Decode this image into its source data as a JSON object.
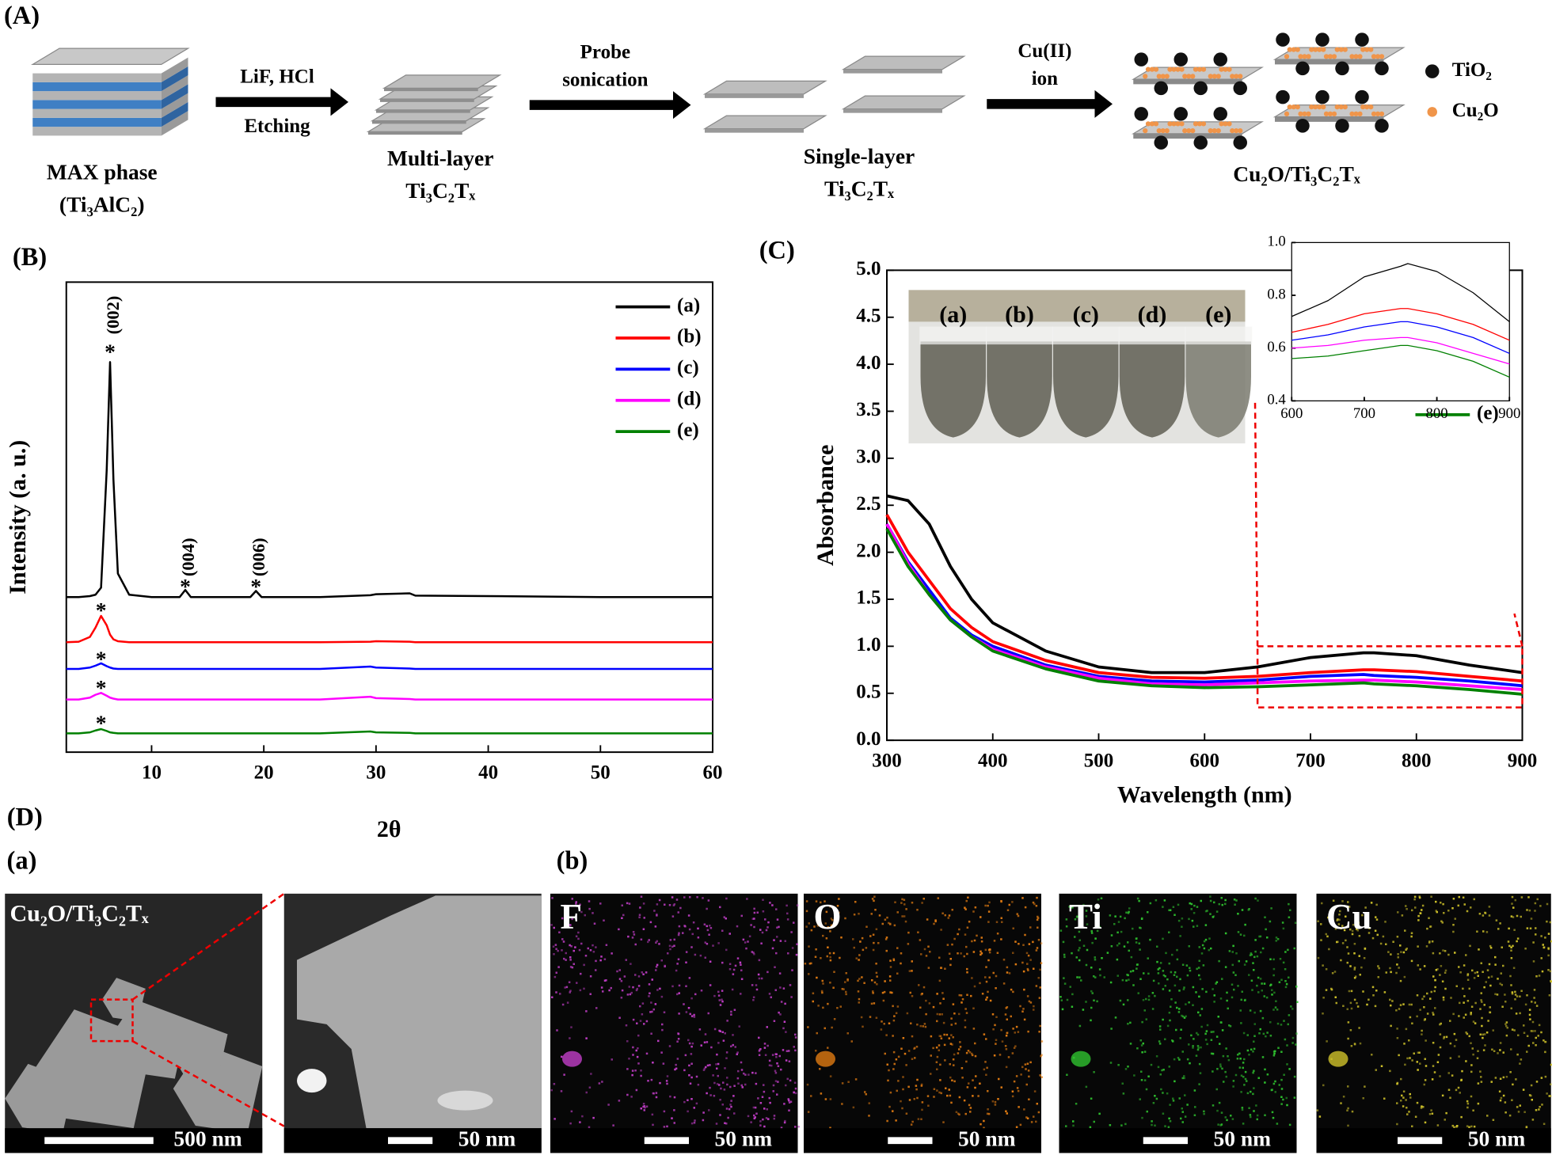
{
  "panel_labels": {
    "A": "(A)",
    "B": "(B)",
    "C": "(C)",
    "D": "(D)",
    "Da": "(a)",
    "Db": "(b)"
  },
  "schematic": {
    "stages": [
      {
        "lines": [
          "MAX phase",
          "(Ti₃AlC₂)"
        ]
      },
      {
        "lines": [
          "Multi-layer",
          "Ti₃C₂Tₓ"
        ]
      },
      {
        "lines": [
          "Single-layer",
          "Ti₃C₂Tₓ"
        ]
      },
      {
        "lines": [
          "Cu₂O/Ti₃C₂Tₓ"
        ]
      }
    ],
    "arrows": [
      {
        "above": [
          "LiF, HCl"
        ],
        "below": [
          "Etching"
        ]
      },
      {
        "above": [
          "Probe",
          "sonication"
        ],
        "below": []
      },
      {
        "above": [
          "Cu(II)",
          "ion"
        ],
        "below": []
      }
    ],
    "legend": [
      {
        "label": "TiO₂",
        "color": "#111111"
      },
      {
        "label": "Cu₂O",
        "color": "#f0954a"
      }
    ]
  },
  "chart_data": [
    {
      "type": "line",
      "xlabel": "2θ",
      "ylabel": "Intensity (a. u.)",
      "xlim": [
        2.4,
        60
      ],
      "xticks": [
        10,
        20,
        30,
        40,
        50,
        60
      ],
      "ylim": [
        0,
        100
      ],
      "yticks": [],
      "x": [
        2.4,
        3.5,
        4.5,
        5,
        5.5,
        6,
        6.3,
        6.6,
        7,
        8,
        10,
        12.5,
        13,
        13.5,
        18.8,
        19.3,
        19.8,
        25,
        29.5,
        30,
        33,
        33.5,
        40,
        50,
        60
      ],
      "series": [
        {
          "name": "(a)",
          "color": "#000000",
          "values": [
            33,
            33,
            33.2,
            33.5,
            35,
            60,
            83,
            58,
            38,
            33.5,
            33,
            33,
            34.5,
            33,
            33,
            34.3,
            33,
            33,
            33.4,
            33.6,
            33.8,
            33.3,
            33.2,
            33,
            33
          ]
        },
        {
          "name": "(b)",
          "color": "#ff0000",
          "values": [
            23.4,
            23.5,
            24.5,
            26.5,
            29,
            27,
            25,
            24,
            23.6,
            23.4,
            23.4,
            23.4,
            23.4,
            23.4,
            23.4,
            23.4,
            23.4,
            23.4,
            23.5,
            23.6,
            23.5,
            23.4,
            23.4,
            23.4,
            23.4
          ]
        },
        {
          "name": "(c)",
          "color": "#0000ff",
          "values": [
            17.7,
            17.7,
            18,
            18.4,
            18.9,
            18.3,
            18,
            17.8,
            17.7,
            17.7,
            17.7,
            17.7,
            17.7,
            17.7,
            17.7,
            17.7,
            17.7,
            17.7,
            18.2,
            18,
            17.8,
            17.7,
            17.7,
            17.7,
            17.7
          ]
        },
        {
          "name": "(d)",
          "color": "#ff00ff",
          "values": [
            11.2,
            11.2,
            11.6,
            12.2,
            12.6,
            12,
            11.6,
            11.4,
            11.2,
            11.2,
            11.2,
            11.2,
            11.2,
            11.2,
            11.2,
            11.2,
            11.2,
            11.2,
            11.8,
            11.5,
            11.3,
            11.2,
            11.2,
            11.2,
            11.2
          ]
        },
        {
          "name": "(e)",
          "color": "#008000",
          "values": [
            4,
            4,
            4.2,
            4.6,
            4.9,
            4.5,
            4.2,
            4.1,
            4,
            4,
            4,
            4,
            4,
            4,
            4,
            4,
            4,
            4,
            4.4,
            4.2,
            4.1,
            4,
            4,
            4,
            4
          ]
        }
      ],
      "annotations": [
        {
          "text": "*",
          "x": 6.3,
          "y": 86
        },
        {
          "text": "(002)",
          "x": 6.7,
          "y": 93,
          "rotate": -90
        },
        {
          "text": "*",
          "x": 13,
          "y": 36
        },
        {
          "text": "(004)",
          "x": 13.4,
          "y": 41.5,
          "rotate": -90
        },
        {
          "text": "*",
          "x": 19.3,
          "y": 36
        },
        {
          "text": "(006)",
          "x": 19.7,
          "y": 41.5,
          "rotate": -90
        },
        {
          "text": "*",
          "x": 5.5,
          "y": 31
        },
        {
          "text": "*",
          "x": 5.5,
          "y": 20.6
        },
        {
          "text": "*",
          "x": 5.5,
          "y": 14.5
        },
        {
          "text": "*",
          "x": 5.5,
          "y": 7
        }
      ],
      "legend": "upper right"
    },
    {
      "type": "line",
      "xlabel": "Wavelength (nm)",
      "ylabel": "Absorbance",
      "xlim": [
        300,
        900
      ],
      "xticks": [
        300,
        400,
        500,
        600,
        700,
        800,
        900
      ],
      "ylim": [
        0,
        5
      ],
      "yticks": [
        {
          "value": 0,
          "label": "0.0"
        },
        0.5,
        {
          "value": 1,
          "label": "1.0"
        },
        1.5,
        {
          "value": 2,
          "label": "2.0"
        },
        2.5,
        {
          "value": 3,
          "label": "3.0"
        },
        3.5,
        {
          "value": 4,
          "label": "4.0"
        },
        4.5,
        {
          "value": 5,
          "label": "5.0"
        }
      ],
      "x": [
        300,
        320,
        340,
        360,
        380,
        400,
        450,
        500,
        550,
        600,
        650,
        700,
        750,
        760,
        800,
        850,
        900
      ],
      "series": [
        {
          "name": "(a)",
          "color": "#000000",
          "values": [
            2.6,
            2.55,
            2.3,
            1.85,
            1.5,
            1.25,
            0.95,
            0.78,
            0.72,
            0.72,
            0.78,
            0.88,
            0.93,
            0.93,
            0.9,
            0.8,
            0.72
          ]
        },
        {
          "name": "(b)",
          "color": "#ff0000",
          "values": [
            2.4,
            2.0,
            1.7,
            1.4,
            1.2,
            1.05,
            0.85,
            0.72,
            0.67,
            0.66,
            0.68,
            0.72,
            0.75,
            0.75,
            0.73,
            0.68,
            0.63
          ]
        },
        {
          "name": "(c)",
          "color": "#0000ff",
          "values": [
            2.3,
            1.9,
            1.6,
            1.3,
            1.12,
            1.0,
            0.8,
            0.68,
            0.63,
            0.62,
            0.64,
            0.68,
            0.7,
            0.69,
            0.67,
            0.63,
            0.58
          ]
        },
        {
          "name": "(d)",
          "color": "#ff00ff",
          "values": [
            2.3,
            1.88,
            1.55,
            1.28,
            1.1,
            0.97,
            0.78,
            0.66,
            0.6,
            0.59,
            0.61,
            0.63,
            0.64,
            0.64,
            0.62,
            0.58,
            0.54
          ]
        },
        {
          "name": "(e)",
          "color": "#008000",
          "values": [
            2.25,
            1.85,
            1.55,
            1.28,
            1.1,
            0.95,
            0.76,
            0.63,
            0.58,
            0.56,
            0.57,
            0.59,
            0.61,
            0.6,
            0.58,
            0.54,
            0.49
          ]
        }
      ],
      "photo_labels": [
        "(a)",
        "(b)",
        "(c)",
        "(d)",
        "(e)"
      ],
      "legend": "upper right"
    },
    {
      "type": "line",
      "xlim": [
        600,
        900
      ],
      "xticks": [
        600,
        700,
        800,
        900
      ],
      "ylim": [
        0.4,
        1
      ],
      "yticks": [
        0.4,
        0.6,
        0.8,
        {
          "value": 1,
          "label": "1.0"
        }
      ],
      "x": [
        600,
        650,
        700,
        750,
        760,
        800,
        850,
        900
      ],
      "series": [
        {
          "color": "#000000",
          "values": [
            0.72,
            0.78,
            0.87,
            0.91,
            0.92,
            0.89,
            0.81,
            0.7
          ]
        },
        {
          "color": "#ff0000",
          "values": [
            0.66,
            0.69,
            0.73,
            0.75,
            0.75,
            0.73,
            0.69,
            0.63
          ]
        },
        {
          "color": "#0000ff",
          "values": [
            0.63,
            0.65,
            0.68,
            0.7,
            0.7,
            0.68,
            0.64,
            0.58
          ]
        },
        {
          "color": "#ff00ff",
          "values": [
            0.6,
            0.61,
            0.63,
            0.64,
            0.64,
            0.62,
            0.58,
            0.54
          ]
        },
        {
          "color": "#008000",
          "values": [
            0.56,
            0.57,
            0.59,
            0.61,
            0.61,
            0.59,
            0.55,
            0.49
          ]
        }
      ]
    }
  ],
  "micrographs": {
    "overview": {
      "label": "Cu₂O/Ti₃C₂Tₓ",
      "scale_bar": "500 nm"
    },
    "zoom": {
      "scale_bar": "50 nm"
    },
    "maps": [
      {
        "element": "F",
        "color": "#c23ec8",
        "scale_bar": "50 nm"
      },
      {
        "element": "O",
        "color": "#e07b12",
        "scale_bar": "50 nm"
      },
      {
        "element": "Ti",
        "color": "#2fc22f",
        "scale_bar": "50 nm"
      },
      {
        "element": "Cu",
        "color": "#cfc22a",
        "scale_bar": "50 nm"
      }
    ]
  }
}
